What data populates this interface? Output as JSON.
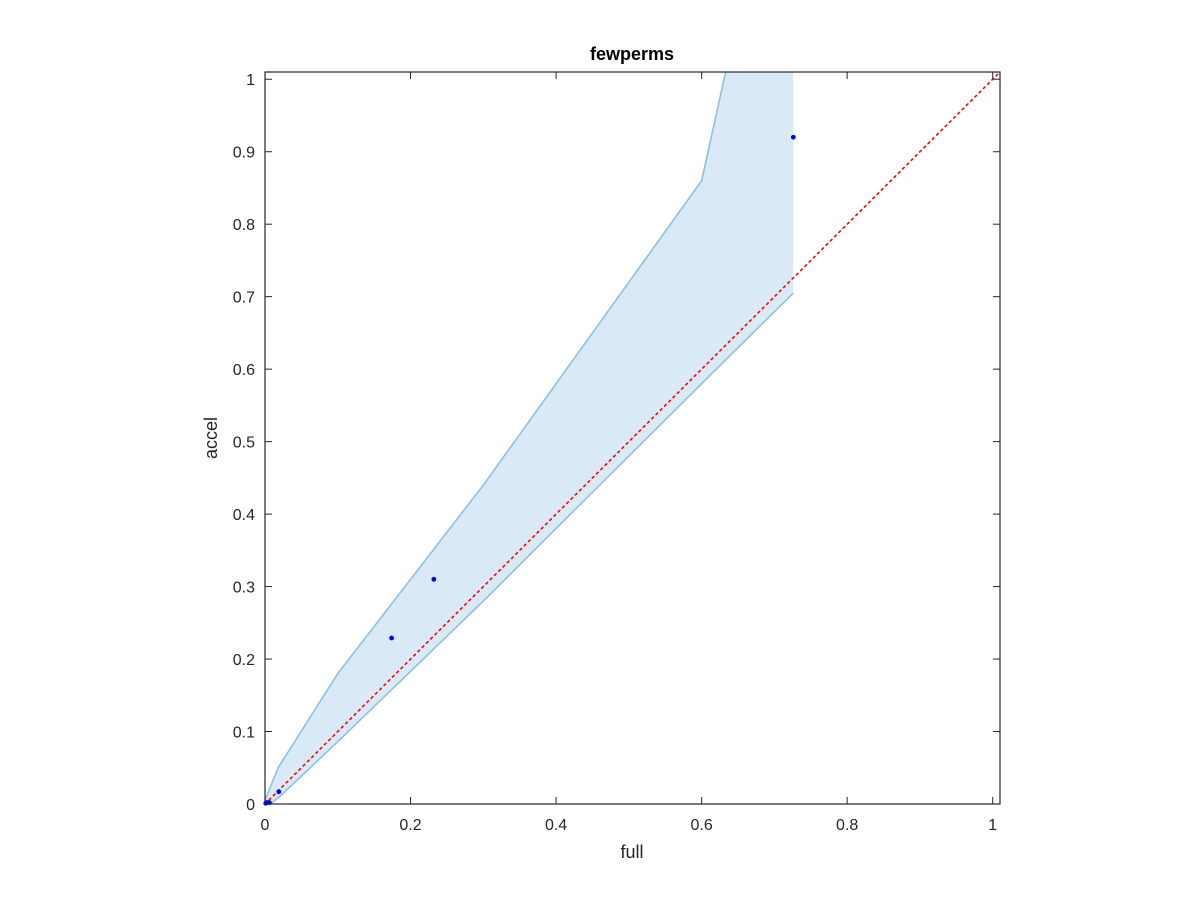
{
  "chart_data": {
    "type": "scatter",
    "title": "fewperms",
    "xlabel": "full",
    "ylabel": "accel",
    "xlim": [
      0,
      1.01
    ],
    "ylim": [
      0,
      1.01
    ],
    "xticks": [
      0,
      0.2,
      0.4,
      0.6,
      0.8,
      1
    ],
    "yticks": [
      0,
      0.1,
      0.2,
      0.3,
      0.4,
      0.5,
      0.6,
      0.7,
      0.8,
      0.9,
      1
    ],
    "xtick_labels": [
      "0",
      "0.2",
      "0.4",
      "0.6",
      "0.8",
      "1"
    ],
    "ytick_labels": [
      "0",
      "0.1",
      "0.2",
      "0.3",
      "0.4",
      "0.5",
      "0.6",
      "0.7",
      "0.8",
      "0.9",
      "1"
    ],
    "grid": false,
    "points": {
      "x": [
        0.001,
        0.003,
        0.006,
        0.019,
        0.174,
        0.232,
        0.726
      ],
      "y": [
        0.001,
        0.002,
        0.002,
        0.017,
        0.229,
        0.31,
        0.92
      ],
      "color": "#0000ff"
    },
    "band": {
      "fill": "#d9e9f5",
      "edge": "#8fc0e1",
      "upper": {
        "x": [
          0,
          0.006,
          0.018,
          0.1,
          0.2,
          0.3,
          0.4,
          0.5,
          0.6,
          0.633
        ],
        "y": [
          0.005,
          0.02,
          0.05,
          0.18,
          0.31,
          0.44,
          0.58,
          0.72,
          0.86,
          1.01
        ]
      },
      "lower": {
        "x": [
          0,
          0.01,
          0.02,
          0.1,
          0.2,
          0.3,
          0.4,
          0.5,
          0.6,
          0.726
        ],
        "y": [
          0,
          0.002,
          0.01,
          0.086,
          0.183,
          0.28,
          0.38,
          0.48,
          0.58,
          0.705
        ]
      },
      "right_x": 0.726
    },
    "reference_line": {
      "x": [
        0,
        1.01
      ],
      "y": [
        0,
        1.01
      ],
      "color": "#ff0000",
      "style": "dotted"
    }
  }
}
